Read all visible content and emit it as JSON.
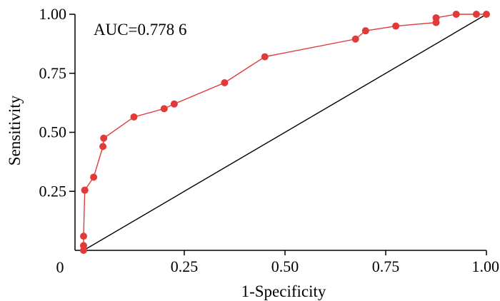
{
  "chart_data": {
    "type": "line",
    "title": "",
    "xlabel": "1-Specificity",
    "ylabel": "Sensitivity",
    "xlim": [
      0,
      1
    ],
    "ylim": [
      0,
      1
    ],
    "x_ticks": [
      0.25,
      0.5,
      0.75,
      1.0
    ],
    "x_tick_labels": [
      "0.25",
      "0.50",
      "0.75",
      "1.00"
    ],
    "y_ticks": [
      0.25,
      0.5,
      0.75,
      1.0
    ],
    "y_tick_labels": [
      "0.25",
      "0.50",
      "0.75",
      "1.00"
    ],
    "origin_label": "0",
    "annotation": "AUC=0.778 6",
    "grid": false,
    "series": [
      {
        "color": "#e03a3a",
        "x": [
          0.0,
          0.0,
          0.0,
          0.003,
          0.003,
          0.025,
          0.048,
          0.05,
          0.125,
          0.2,
          0.225,
          0.35,
          0.45,
          0.675,
          0.7,
          0.775,
          0.875,
          0.875,
          0.925,
          0.975,
          1.0
        ],
        "y": [
          0.0,
          0.02,
          0.06,
          0.255,
          0.255,
          0.31,
          0.44,
          0.475,
          0.565,
          0.6,
          0.62,
          0.71,
          0.82,
          0.895,
          0.93,
          0.95,
          0.965,
          0.985,
          1.0,
          1.0,
          1.0
        ]
      },
      {
        "color": "#000000",
        "x": [
          0,
          1
        ],
        "y": [
          0,
          1
        ]
      }
    ]
  }
}
